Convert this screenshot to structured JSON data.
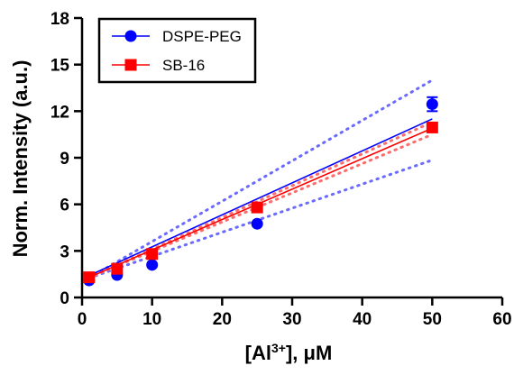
{
  "chart_data": {
    "type": "scatter",
    "title": "",
    "xlabel_main": "[Al",
    "xlabel_sup": "3+",
    "xlabel_tail": "], μM",
    "ylabel": "Norm. Intensity (a.u.)",
    "xlim": [
      0,
      60
    ],
    "ylim": [
      0,
      18
    ],
    "xticks": [
      0,
      10,
      20,
      30,
      40,
      50,
      60
    ],
    "yticks": [
      0,
      3,
      6,
      9,
      12,
      15,
      18
    ],
    "grid": false,
    "legend_position": "top-left",
    "series": [
      {
        "name": "DSPE-PEG",
        "color": "#0000ff",
        "marker": "circle",
        "x": [
          1,
          5,
          10,
          25,
          50
        ],
        "y": [
          1.1,
          1.45,
          2.1,
          4.75,
          12.45
        ],
        "error": [
          0,
          0,
          0,
          0,
          0.45
        ],
        "fit": {
          "slope": 0.206,
          "intercept": 1.2
        },
        "ci_upper": {
          "slope": 0.26,
          "intercept": 1.0
        },
        "ci_lower": {
          "slope": 0.155,
          "intercept": 1.1
        }
      },
      {
        "name": "SB-16",
        "color": "#ff0000",
        "marker": "square",
        "x": [
          1,
          5,
          10,
          25,
          50
        ],
        "y": [
          1.3,
          1.85,
          2.8,
          5.8,
          10.95
        ],
        "error": [
          0,
          0,
          0,
          0,
          0.25
        ],
        "fit": {
          "slope": 0.196,
          "intercept": 1.1
        },
        "ci_upper": {
          "slope": 0.205,
          "intercept": 1.05
        },
        "ci_lower": {
          "slope": 0.188,
          "intercept": 1.1
        }
      }
    ]
  }
}
